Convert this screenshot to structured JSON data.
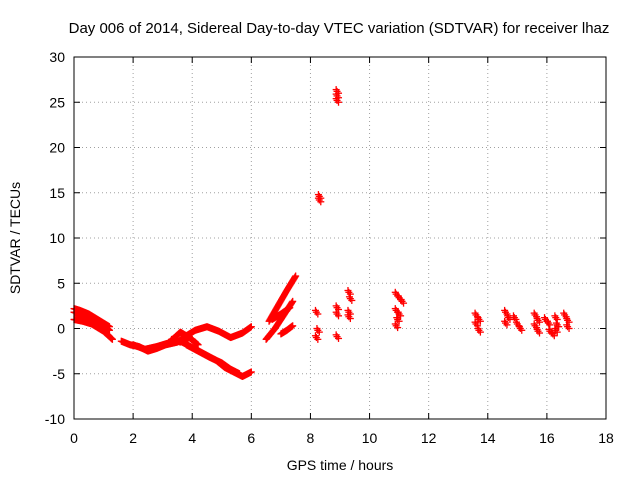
{
  "chart_data": {
    "type": "scatter",
    "title": "Day 006 of 2014, Sidereal Day-to-day VTEC variation (SDTVAR) for receiver lhaz",
    "xlabel": "GPS time / hours",
    "ylabel": "SDTVAR / TECUs",
    "xlim": [
      0,
      18
    ],
    "ylim": [
      -10,
      30
    ],
    "xticks": [
      "0",
      "2",
      "4",
      "6",
      "8",
      "10",
      "12",
      "14",
      "16",
      "18"
    ],
    "yticks": [
      "-10",
      "-5",
      "0",
      "5",
      "10",
      "15",
      "20",
      "25",
      "30"
    ],
    "grid": true,
    "marker_color": "#ff0000",
    "series": [
      {
        "name": "SDTVAR",
        "segments": [
          {
            "x": [
              0.0,
              0.3,
              0.6,
              0.9,
              1.2
            ],
            "y": [
              1.8,
              1.5,
              1.2,
              0.6,
              -0.2
            ]
          },
          {
            "x": [
              0.0,
              0.3,
              0.6,
              1.0,
              1.3
            ],
            "y": [
              1.0,
              0.8,
              0.5,
              -0.3,
              -1.2
            ]
          },
          {
            "x": [
              0.0,
              0.2,
              0.5,
              0.8,
              1.2
            ],
            "y": [
              2.2,
              2.0,
              1.6,
              1.0,
              0.2
            ]
          },
          {
            "x": [
              1.6,
              1.9,
              2.2,
              2.5,
              2.8,
              3.1,
              3.5,
              3.8,
              4.1,
              4.5,
              4.9,
              5.3,
              5.7,
              6.0
            ],
            "y": [
              -1.4,
              -1.8,
              -2.0,
              -2.5,
              -2.2,
              -1.8,
              -1.5,
              -0.8,
              -0.2,
              0.2,
              -0.3,
              -1.0,
              -0.5,
              0.2
            ]
          },
          {
            "x": [
              2.0,
              2.4,
              2.8,
              3.2,
              3.6,
              4.0
            ],
            "y": [
              -1.8,
              -2.3,
              -2.0,
              -1.6,
              -0.4,
              -1.2
            ]
          },
          {
            "x": [
              3.3,
              3.6,
              3.9,
              4.2
            ],
            "y": [
              -1.2,
              -1.5,
              -1.0,
              -1.8
            ]
          },
          {
            "x": [
              3.6,
              4.0,
              4.4,
              4.8,
              5.1,
              5.4,
              5.7,
              6.0
            ],
            "y": [
              -1.4,
              -2.1,
              -2.8,
              -3.5,
              -4.3,
              -4.8,
              -5.3,
              -4.8
            ]
          },
          {
            "x": [
              3.8,
              4.2,
              4.6,
              5.0,
              5.3,
              5.6
            ],
            "y": [
              -1.8,
              -2.5,
              -3.2,
              -3.8,
              -4.5,
              -5.0
            ]
          },
          {
            "x": [
              6.5,
              6.8,
              7.1,
              7.4
            ],
            "y": [
              -1.2,
              0.0,
              1.5,
              3.0
            ]
          },
          {
            "x": [
              6.6,
              6.9,
              7.2,
              7.5
            ],
            "y": [
              0.8,
              2.5,
              4.2,
              5.8
            ]
          },
          {
            "x": [
              6.7,
              7.0,
              7.3
            ],
            "y": [
              1.0,
              1.6,
              2.3
            ]
          },
          {
            "x": [
              7.0,
              7.2,
              7.4
            ],
            "y": [
              -0.6,
              -0.2,
              0.3
            ]
          }
        ],
        "points": [
          {
            "x": 8.3,
            "y": 14.6
          },
          {
            "x": 8.3,
            "y": 14.2
          },
          {
            "x": 8.9,
            "y": 26.2
          },
          {
            "x": 8.9,
            "y": 25.7
          },
          {
            "x": 8.9,
            "y": 25.2
          },
          {
            "x": 8.2,
            "y": 1.8
          },
          {
            "x": 8.25,
            "y": -0.2
          },
          {
            "x": 8.2,
            "y": -1.0
          },
          {
            "x": 8.9,
            "y": 2.3
          },
          {
            "x": 8.9,
            "y": 1.6
          },
          {
            "x": 8.9,
            "y": -0.9
          },
          {
            "x": 9.3,
            "y": 4.0
          },
          {
            "x": 9.35,
            "y": 3.3
          },
          {
            "x": 9.3,
            "y": 1.8
          },
          {
            "x": 9.3,
            "y": 1.3
          },
          {
            "x": 10.9,
            "y": 3.8
          },
          {
            "x": 11.0,
            "y": 3.4
          },
          {
            "x": 11.1,
            "y": 3.0
          },
          {
            "x": 10.9,
            "y": 2.0
          },
          {
            "x": 11.0,
            "y": 1.6
          },
          {
            "x": 10.95,
            "y": 1.0
          },
          {
            "x": 10.9,
            "y": 0.3
          },
          {
            "x": 13.6,
            "y": 1.5
          },
          {
            "x": 13.7,
            "y": 1.0
          },
          {
            "x": 13.6,
            "y": 0.5
          },
          {
            "x": 13.7,
            "y": -0.2
          },
          {
            "x": 14.6,
            "y": 1.8
          },
          {
            "x": 14.7,
            "y": 1.2
          },
          {
            "x": 14.6,
            "y": 0.6
          },
          {
            "x": 14.9,
            "y": 1.2
          },
          {
            "x": 15.0,
            "y": 0.5
          },
          {
            "x": 15.1,
            "y": 0.0
          },
          {
            "x": 15.6,
            "y": 1.5
          },
          {
            "x": 15.7,
            "y": 0.9
          },
          {
            "x": 15.6,
            "y": 0.3
          },
          {
            "x": 15.7,
            "y": -0.3
          },
          {
            "x": 15.95,
            "y": 1.0
          },
          {
            "x": 16.05,
            "y": 0.6
          },
          {
            "x": 16.1,
            "y": -0.3
          },
          {
            "x": 16.2,
            "y": -0.6
          },
          {
            "x": 16.3,
            "y": 1.2
          },
          {
            "x": 16.35,
            "y": 0.4
          },
          {
            "x": 16.3,
            "y": -0.2
          },
          {
            "x": 16.6,
            "y": 1.5
          },
          {
            "x": 16.7,
            "y": 0.9
          },
          {
            "x": 16.7,
            "y": 0.2
          }
        ]
      }
    ]
  }
}
